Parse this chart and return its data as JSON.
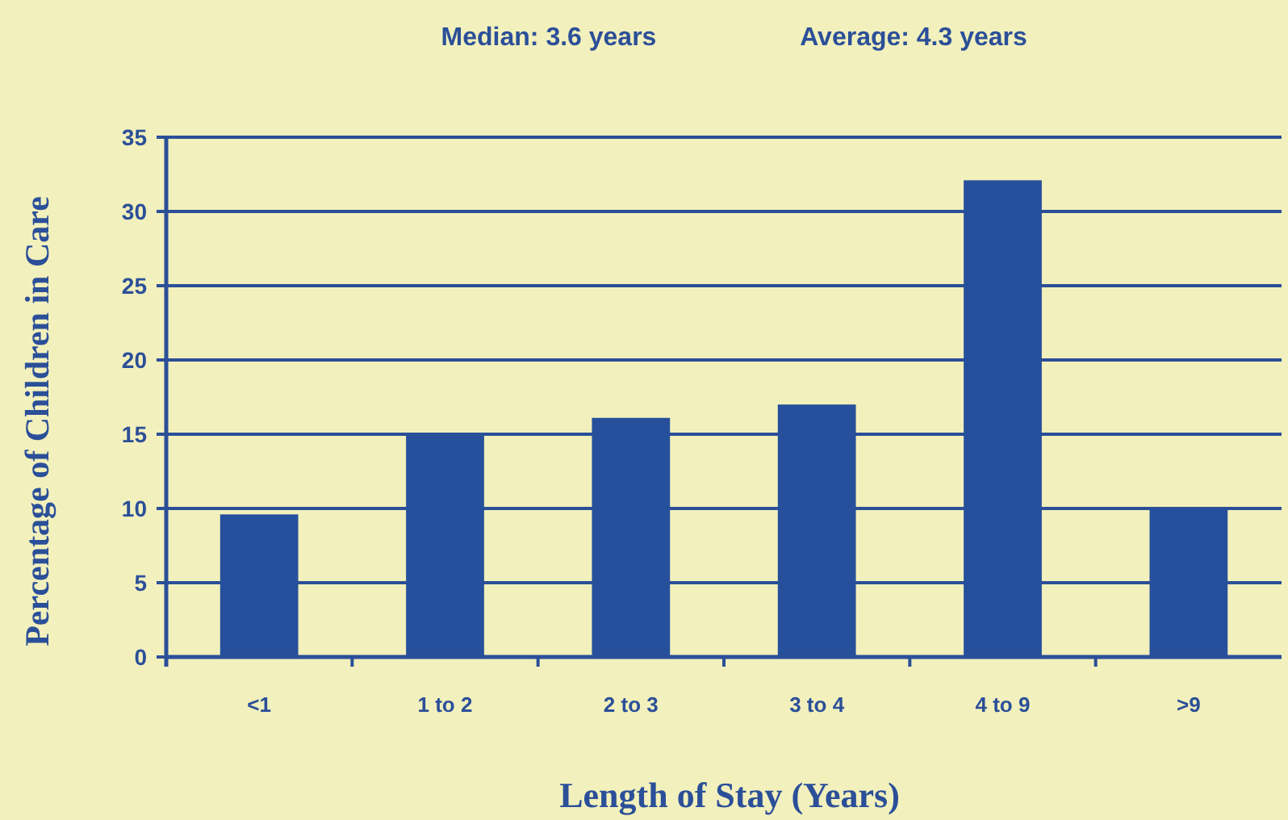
{
  "chart_data": {
    "type": "bar",
    "annotations": [
      "Median: 3.6 years",
      "Average: 4.3 years"
    ],
    "xlabel": "Length of Stay (Years)",
    "ylabel": "Percentage of Children in Care",
    "categories": [
      "<1",
      "1 to 2",
      "2 to 3",
      "3 to 4",
      "4 to 9",
      ">9"
    ],
    "values": [
      9.6,
      14.9,
      16.1,
      17,
      32.1,
      10
    ],
    "color": "#26509b",
    "ylim": [
      0,
      35
    ],
    "yticks": [
      0,
      5,
      10,
      15,
      20,
      25,
      30,
      35
    ],
    "grid": "y"
  }
}
